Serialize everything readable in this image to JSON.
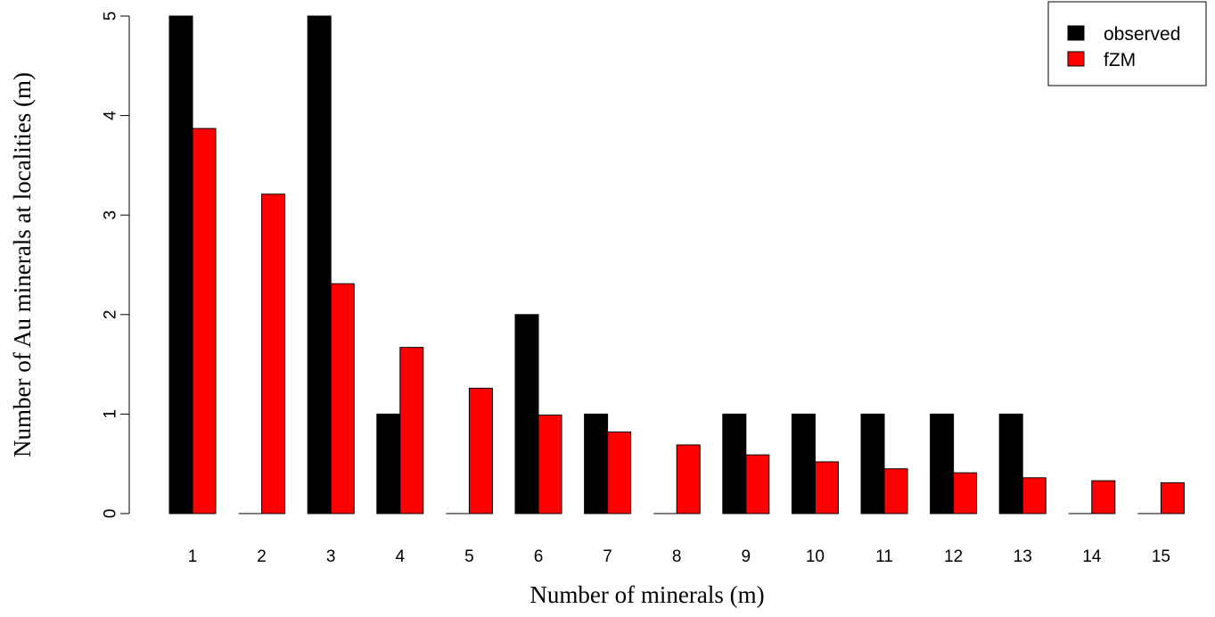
{
  "chart_data": {
    "type": "bar",
    "xlabel": "Number of minerals (m)",
    "ylabel": "Number of Au minerals at localities (m)",
    "categories": [
      "1",
      "2",
      "3",
      "4",
      "5",
      "6",
      "7",
      "8",
      "9",
      "10",
      "11",
      "12",
      "13",
      "14",
      "15"
    ],
    "series": [
      {
        "name": "observed",
        "color": "#000000",
        "values": [
          5,
          0,
          5,
          1,
          0,
          2,
          1,
          0,
          1,
          1,
          1,
          1,
          1,
          0,
          0
        ]
      },
      {
        "name": "fZM",
        "color": "#ff0000",
        "values": [
          3.87,
          3.21,
          2.31,
          1.67,
          1.26,
          0.99,
          0.82,
          0.69,
          0.59,
          0.52,
          0.45,
          0.41,
          0.36,
          0.33,
          0.31
        ]
      }
    ],
    "ylim": [
      0,
      5
    ],
    "yticks": [
      "0",
      "1",
      "2",
      "3",
      "4",
      "5"
    ],
    "grid": false,
    "legend_position": "top-right"
  }
}
